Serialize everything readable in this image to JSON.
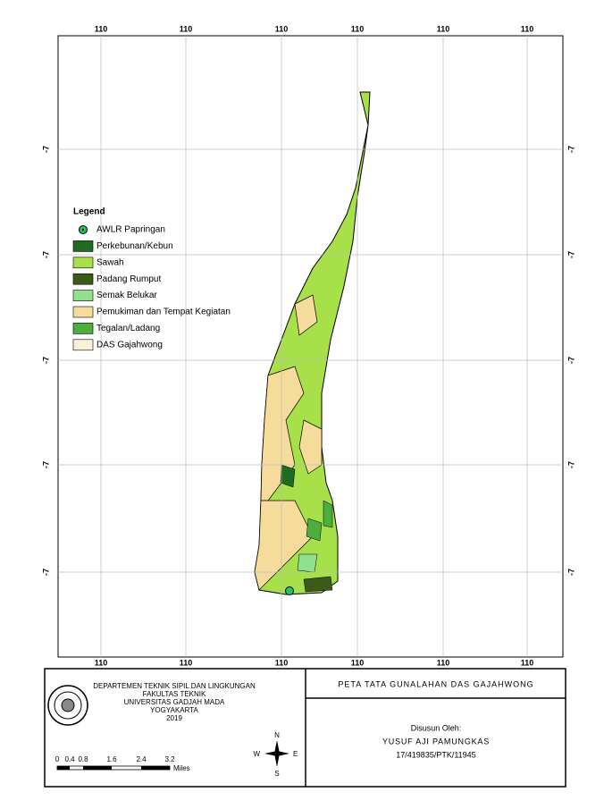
{
  "map": {
    "top_ticks": [
      "110",
      "110",
      "110",
      "110",
      "110",
      "110"
    ],
    "bottom_ticks": [
      "110",
      "110",
      "110",
      "110",
      "110",
      "110"
    ],
    "left_ticks": [
      "-7",
      "-7",
      "-7",
      "-7",
      "-7"
    ],
    "right_ticks": [
      "-7",
      "-7",
      "-7",
      "-7",
      "-7"
    ],
    "legend": {
      "title": "Legend",
      "items": [
        {
          "label": "AWLR Papringan",
          "color": "#22c55e"
        },
        {
          "label": "Perkebunan/Kebun",
          "color": "#1f6b1f"
        },
        {
          "label": "Sawah",
          "color": "#a8e04a"
        },
        {
          "label": "Padang Rumput",
          "color": "#3d5a1a"
        },
        {
          "label": "Semak Belukar",
          "color": "#90e090"
        },
        {
          "label": "Pemukiman dan Tempat Kegiatan",
          "color": "#f5dc9a"
        },
        {
          "label": "Tegalan/Ladang",
          "color": "#4cae3c"
        },
        {
          "label": "DAS Gajahwong",
          "color": "#f8f0d8"
        }
      ]
    }
  },
  "title_block": {
    "institution": [
      "DEPARTEMEN TEKNIK SIPIL DAN LINGKUNGAN",
      "FAKULTAS TEKNIK",
      "UNIVERSITAS GADJAH MADA",
      "YOGYAKARTA",
      "2019"
    ],
    "map_title": "PETA TATA GUNALAHAN DAS GAJAHWONG",
    "author_heading": "Disusun Oleh:",
    "author": "YUSUF AJI PAMUNGKAS",
    "student_id": "17/419835/PTK/11945",
    "scale_labels": [
      "0",
      "0.4",
      "0.8",
      "1.6",
      "2.4",
      "3.2"
    ],
    "scale_unit": "Miles",
    "compass": [
      "N",
      "W",
      "E",
      "S"
    ]
  }
}
